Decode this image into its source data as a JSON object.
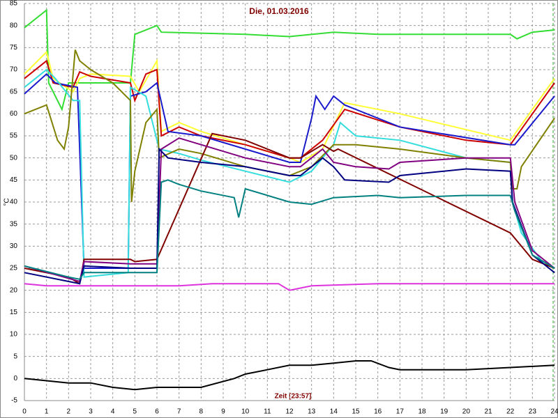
{
  "chart_data": {
    "type": "line",
    "title": "Die, 01.03.2016",
    "xlabel": "Zeit [23:57]",
    "ylabel": "°C",
    "xlim": [
      0,
      24
    ],
    "ylim": [
      -5,
      85
    ],
    "xticks": [
      0,
      1,
      2,
      3,
      4,
      5,
      6,
      7,
      8,
      9,
      10,
      11,
      12,
      13,
      14,
      15,
      16,
      17,
      18,
      19,
      20,
      21,
      22,
      23,
      24
    ],
    "yticks": [
      -5,
      0,
      5,
      10,
      15,
      20,
      25,
      30,
      35,
      40,
      45,
      50,
      55,
      60,
      65,
      70,
      75,
      80,
      85
    ],
    "grid": true,
    "series": [
      {
        "color": "#33dd33",
        "x": [
          0,
          1,
          1.1,
          1.7,
          2,
          4.8,
          5,
          6,
          6.2,
          10,
          12,
          14,
          16,
          20,
          22,
          22.3,
          23,
          24
        ],
        "values": [
          79.5,
          83.5,
          67,
          61,
          67,
          67,
          78,
          80,
          78.5,
          78,
          77.5,
          78.5,
          78,
          78,
          78,
          77,
          78.5,
          79
        ]
      },
      {
        "color": "#ffff33",
        "x": [
          0,
          1,
          1.3,
          2.2,
          2.5,
          3,
          4.8,
          5.2,
          6,
          6.2,
          7,
          8,
          10,
          12,
          12.5,
          13.5,
          14.5,
          17,
          22,
          24
        ],
        "values": [
          69,
          74,
          68,
          65,
          68,
          69,
          68.5,
          65,
          72,
          56,
          58,
          56,
          53,
          50,
          49,
          52,
          62.5,
          60,
          54,
          68
        ]
      },
      {
        "color": "#cc0000",
        "x": [
          0,
          1,
          1.3,
          2.2,
          2.5,
          3,
          4.8,
          5,
          5.5,
          6,
          6.2,
          7,
          8,
          10,
          12,
          12.5,
          13.5,
          14.5,
          17,
          20,
          22,
          24
        ],
        "values": [
          68,
          72,
          67,
          66,
          69.5,
          68.5,
          67,
          63,
          69,
          70,
          55,
          57,
          55,
          53,
          50,
          50,
          54,
          61,
          57,
          54,
          53,
          67
        ]
      },
      {
        "color": "#1a1acc",
        "x": [
          0,
          1,
          1.4,
          2.4,
          2.7,
          4.7,
          4.8,
          5.5,
          6,
          6.5,
          8,
          10,
          12,
          12.5,
          13,
          13.2,
          13.6,
          14,
          14.5,
          17,
          22,
          22.2,
          24
        ],
        "values": [
          64.5,
          69,
          67,
          66,
          25,
          25,
          64,
          65,
          67,
          56,
          55,
          52,
          49,
          49,
          59,
          64,
          61,
          64,
          62,
          57,
          53,
          53,
          64
        ]
      },
      {
        "color": "#33dddd",
        "x": [
          0,
          1,
          1.4,
          2.2,
          2.5,
          2.7,
          4.7,
          4.8,
          5.5,
          6,
          6.1,
          7,
          8,
          10,
          12,
          13,
          14,
          14.3,
          15,
          17,
          20,
          22,
          22.1,
          22.5,
          23.5,
          24
        ],
        "values": [
          66,
          70,
          68,
          63,
          63,
          23,
          24,
          66,
          64,
          54,
          52,
          51,
          49.5,
          47,
          44.5,
          47,
          53,
          58,
          55,
          54,
          50,
          49,
          40,
          33,
          26,
          25
        ]
      },
      {
        "color": "#808000",
        "x": [
          0,
          1,
          1.5,
          1.8,
          2,
          2.3,
          2.5,
          3,
          4,
          4.8,
          4.85,
          5,
          5.5,
          6,
          6.1,
          7,
          8,
          10,
          12,
          13,
          14,
          15,
          17,
          20,
          22,
          22.1,
          22.3,
          22.5,
          24
        ],
        "values": [
          60,
          62,
          54,
          52,
          57,
          74.5,
          72,
          70,
          67,
          63,
          40,
          47,
          58,
          61,
          50,
          52,
          51,
          48,
          46,
          48,
          53,
          53,
          52,
          50,
          49,
          43,
          43,
          48,
          59
        ]
      },
      {
        "color": "#800000",
        "x": [
          0,
          2,
          2.5,
          2.7,
          4.8,
          5,
          6,
          8.5,
          10,
          12,
          12.5,
          13.5,
          14,
          14.2,
          22,
          23,
          24
        ],
        "values": [
          25,
          23,
          21.5,
          27,
          27,
          26.5,
          27,
          55.5,
          54,
          50,
          50,
          53,
          51.5,
          52,
          33,
          27,
          25
        ]
      },
      {
        "color": "#800080",
        "x": [
          0,
          2.5,
          2.7,
          4.8,
          6,
          6.2,
          7,
          8,
          10,
          12,
          12.5,
          13.5,
          14,
          15,
          16.5,
          17,
          20,
          22,
          22.2,
          23,
          24
        ],
        "values": [
          25.5,
          22,
          26.5,
          26,
          26,
          52,
          54.5,
          53,
          50,
          48,
          48,
          52,
          49,
          48,
          47.5,
          49,
          50,
          50,
          40,
          29,
          25
        ]
      },
      {
        "color": "#000080",
        "x": [
          0,
          2,
          2.5,
          2.7,
          4.8,
          6,
          6.1,
          6.5,
          8,
          10,
          12,
          12.5,
          13.5,
          14,
          14.5,
          16.5,
          17,
          20,
          22,
          22.1,
          23,
          24
        ],
        "values": [
          24,
          22,
          21.5,
          25.5,
          25,
          25,
          52,
          50,
          49,
          48,
          46,
          46,
          50,
          48,
          45,
          44.5,
          46,
          47.5,
          47,
          40,
          28,
          24
        ]
      },
      {
        "color": "#008080",
        "x": [
          0,
          2,
          2.5,
          2.7,
          6,
          6.2,
          6.5,
          7,
          8,
          9.5,
          9.7,
          10,
          12,
          13,
          14,
          16,
          17,
          20,
          22,
          22.2,
          23,
          24
        ],
        "values": [
          25.5,
          23,
          22.5,
          24,
          24,
          44.5,
          45,
          44,
          42.5,
          41,
          36.5,
          43,
          40,
          39.5,
          41,
          41.5,
          41,
          41.5,
          41.5,
          38,
          28,
          25
        ]
      },
      {
        "color": "#dd33dd",
        "x": [
          0,
          1,
          2,
          7,
          8.5,
          11.5,
          12,
          13,
          16,
          24
        ],
        "values": [
          21.5,
          21,
          21,
          21,
          21.5,
          21.5,
          20,
          21,
          21.5,
          21.5
        ]
      },
      {
        "color": "#000000",
        "x": [
          0,
          1,
          2,
          3,
          4,
          5,
          6,
          8,
          9.5,
          10,
          11,
          12,
          13,
          14,
          15,
          15.7,
          16.5,
          17,
          20,
          22,
          24
        ],
        "values": [
          0,
          -0.5,
          -1,
          -1,
          -2,
          -2.5,
          -2,
          -2,
          0,
          1,
          2,
          3,
          3,
          3.5,
          4,
          4,
          2.5,
          2,
          2,
          2.5,
          3
        ]
      }
    ]
  }
}
